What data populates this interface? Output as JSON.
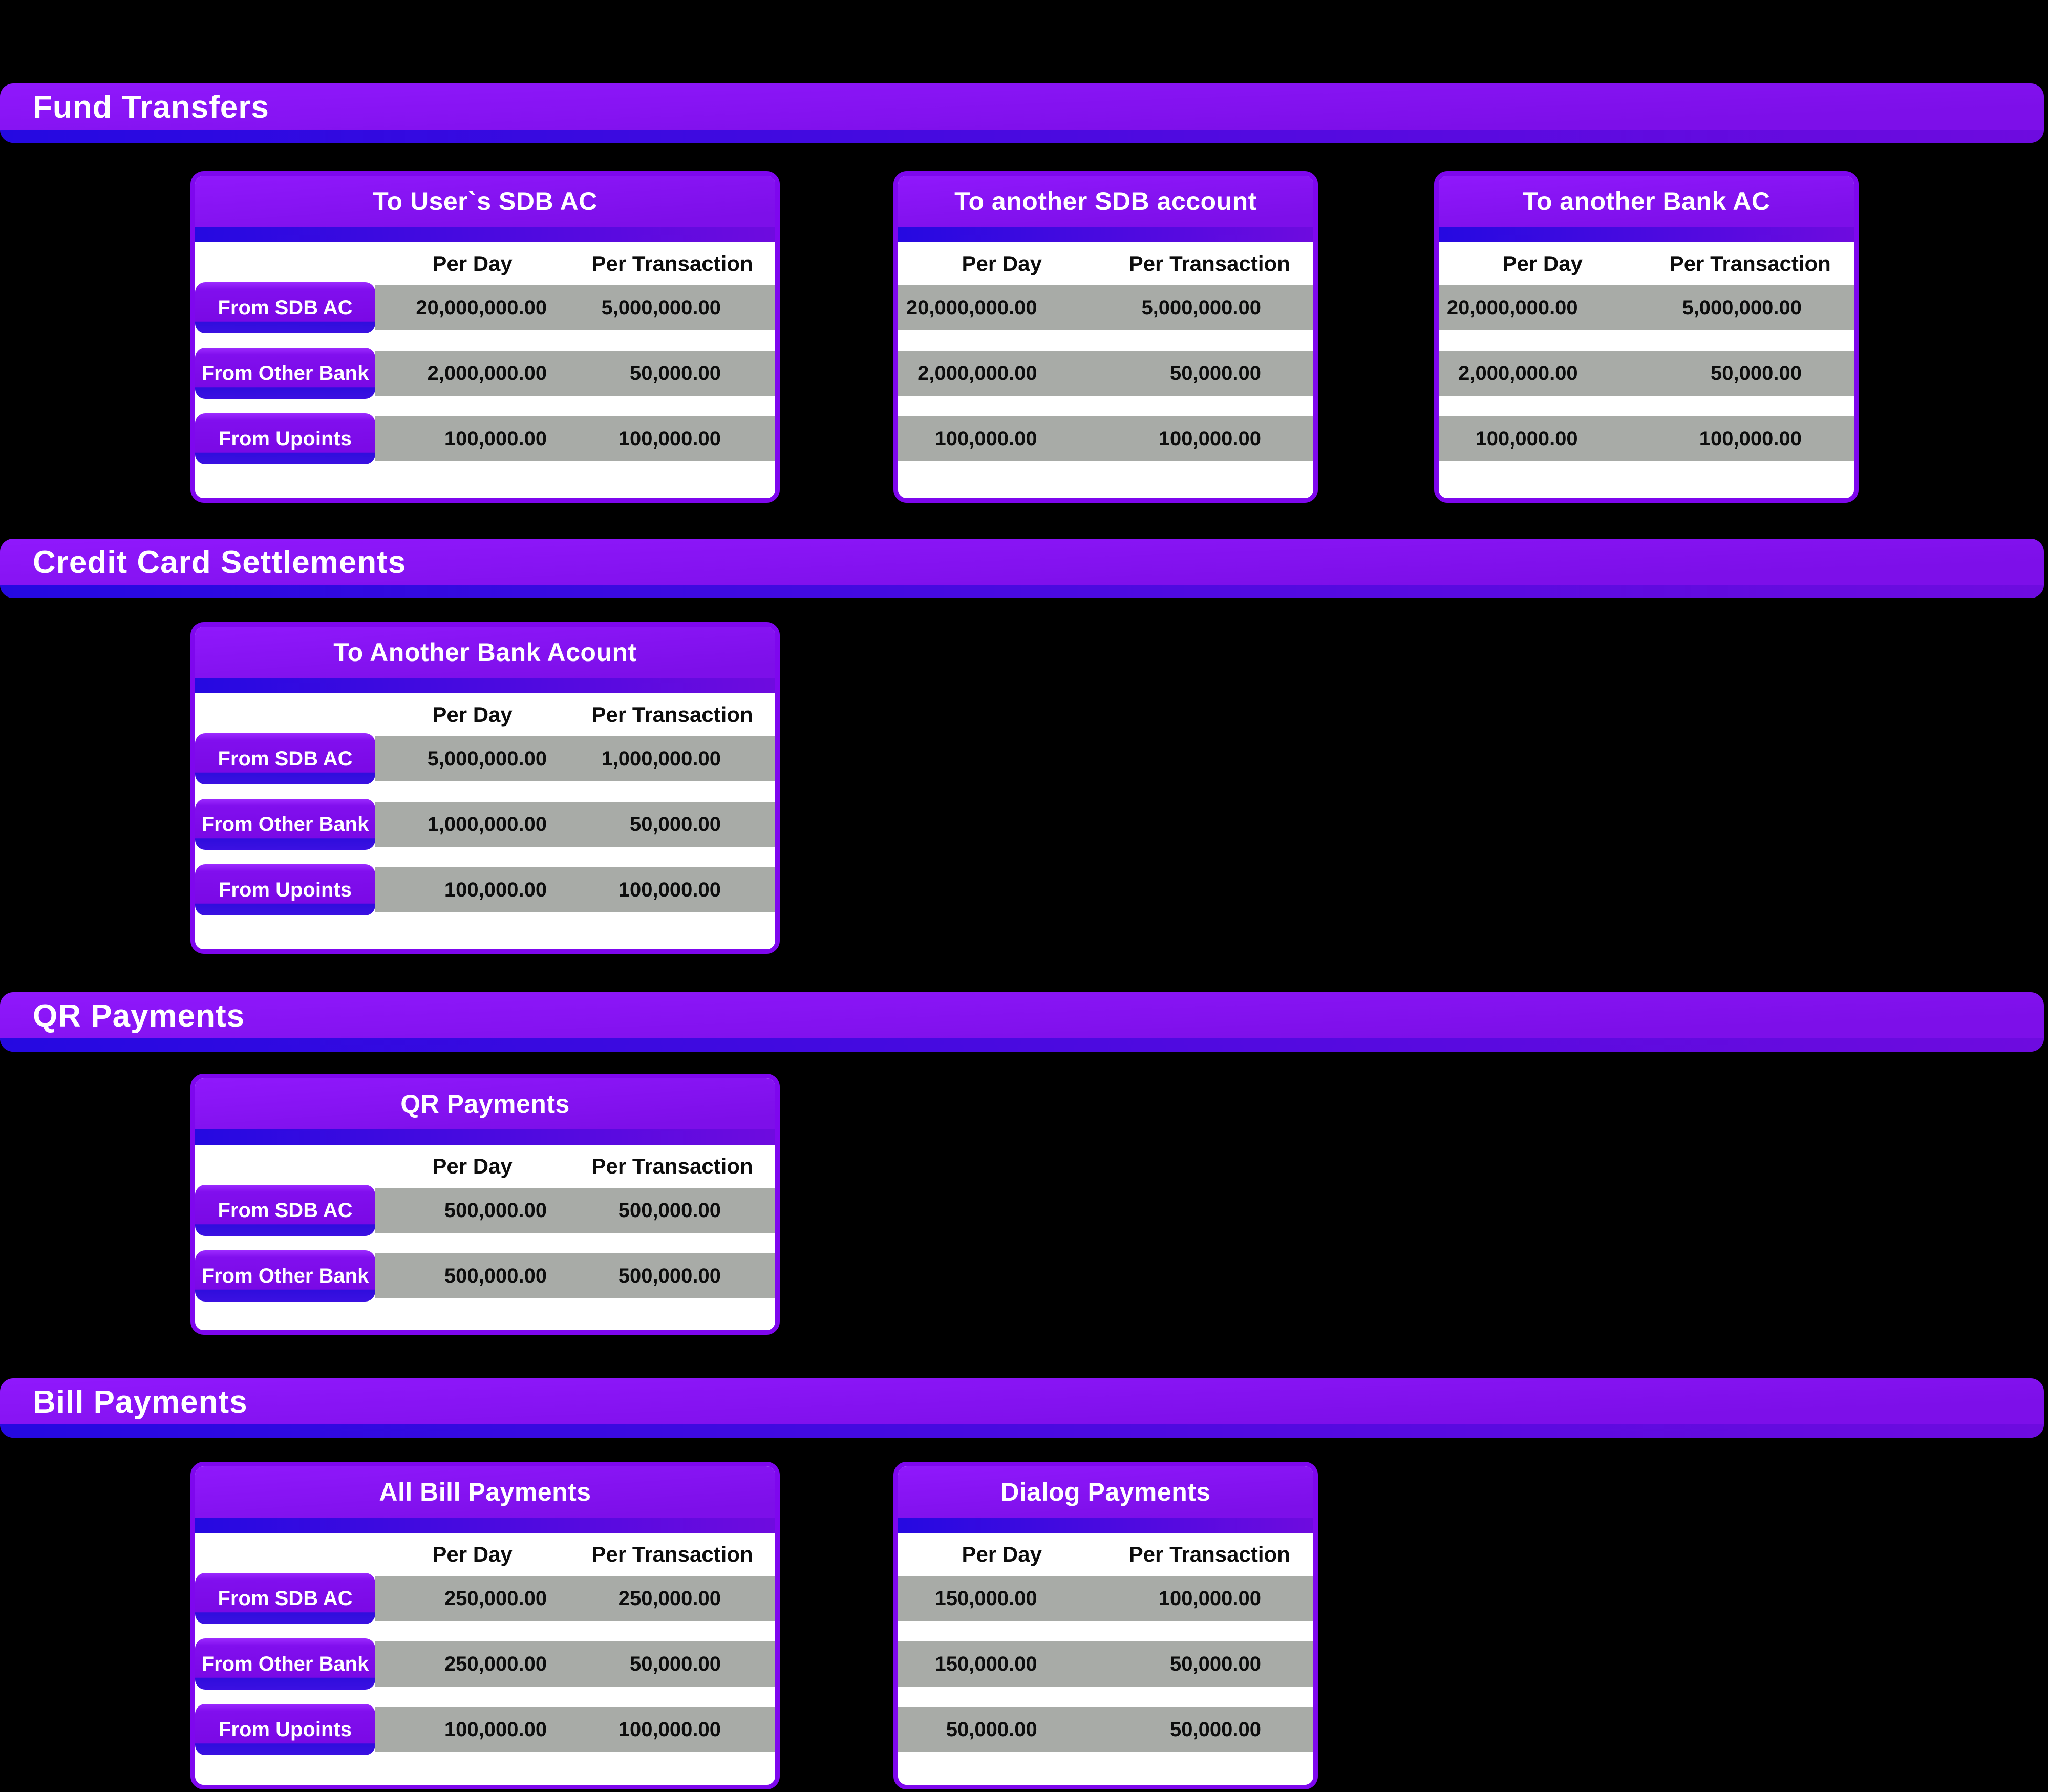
{
  "colors": {
    "background": "#000000",
    "purple_top": "#9018fc",
    "purple_mid": "#7d0fe9",
    "band_blue_left": "#2509e1",
    "band_blue_right": "#6e0bdf",
    "table_border": "#7e07ee",
    "row_gray": "#a8aba7",
    "text_dark": "#0d0d0d",
    "text_light": "#ffffff"
  },
  "sections": [
    {
      "title": "Fund Transfers",
      "tables": [
        {
          "title": "To User`s SDB AC",
          "row_labels": true,
          "columns": [
            "Per Day",
            "Per Transaction"
          ],
          "rows": [
            {
              "label": "From SDB AC",
              "per_day": "20,000,000.00",
              "per_transaction": "5,000,000.00"
            },
            {
              "label": "From Other Bank",
              "per_day": "2,000,000.00",
              "per_transaction": "50,000.00"
            },
            {
              "label": "From Upoints",
              "per_day": "100,000.00",
              "per_transaction": "100,000.00"
            }
          ]
        },
        {
          "title": "To another SDB account",
          "row_labels": false,
          "columns": [
            "Per Day",
            "Per Transaction"
          ],
          "rows": [
            {
              "per_day": "20,000,000.00",
              "per_transaction": "5,000,000.00"
            },
            {
              "per_day": "2,000,000.00",
              "per_transaction": "50,000.00"
            },
            {
              "per_day": "100,000.00",
              "per_transaction": "100,000.00"
            }
          ]
        },
        {
          "title": "To another Bank AC",
          "row_labels": false,
          "columns": [
            "Per Day",
            "Per Transaction"
          ],
          "rows": [
            {
              "per_day": "20,000,000.00",
              "per_transaction": "5,000,000.00"
            },
            {
              "per_day": "2,000,000.00",
              "per_transaction": "50,000.00"
            },
            {
              "per_day": "100,000.00",
              "per_transaction": "100,000.00"
            }
          ]
        }
      ]
    },
    {
      "title": "Credit Card Settlements",
      "tables": [
        {
          "title": "To Another Bank Acount",
          "row_labels": true,
          "columns": [
            "Per Day",
            "Per Transaction"
          ],
          "rows": [
            {
              "label": "From SDB AC",
              "per_day": "5,000,000.00",
              "per_transaction": "1,000,000.00"
            },
            {
              "label": "From Other Bank",
              "per_day": "1,000,000.00",
              "per_transaction": "50,000.00"
            },
            {
              "label": "From Upoints",
              "per_day": "100,000.00",
              "per_transaction": "100,000.00"
            }
          ]
        }
      ]
    },
    {
      "title": "QR Payments",
      "tables": [
        {
          "title": "QR Payments",
          "row_labels": true,
          "columns": [
            "Per Day",
            "Per Transaction"
          ],
          "rows": [
            {
              "label": "From SDB AC",
              "per_day": "500,000.00",
              "per_transaction": "500,000.00"
            },
            {
              "label": "From Other Bank",
              "per_day": "500,000.00",
              "per_transaction": "500,000.00"
            }
          ]
        }
      ]
    },
    {
      "title": "Bill Payments",
      "tables": [
        {
          "title": "All Bill Payments",
          "row_labels": true,
          "columns": [
            "Per Day",
            "Per Transaction"
          ],
          "rows": [
            {
              "label": "From SDB AC",
              "per_day": "250,000.00",
              "per_transaction": "250,000.00"
            },
            {
              "label": "From Other Bank",
              "per_day": "250,000.00",
              "per_transaction": "50,000.00"
            },
            {
              "label": "From Upoints",
              "per_day": "100,000.00",
              "per_transaction": "100,000.00"
            }
          ]
        },
        {
          "title": "Dialog Payments",
          "row_labels": false,
          "columns": [
            "Per Day",
            "Per Transaction"
          ],
          "rows": [
            {
              "per_day": "150,000.00",
              "per_transaction": "100,000.00"
            },
            {
              "per_day": "150,000.00",
              "per_transaction": "50,000.00"
            },
            {
              "per_day": "50,000.00",
              "per_transaction": "50,000.00"
            }
          ]
        }
      ]
    }
  ]
}
